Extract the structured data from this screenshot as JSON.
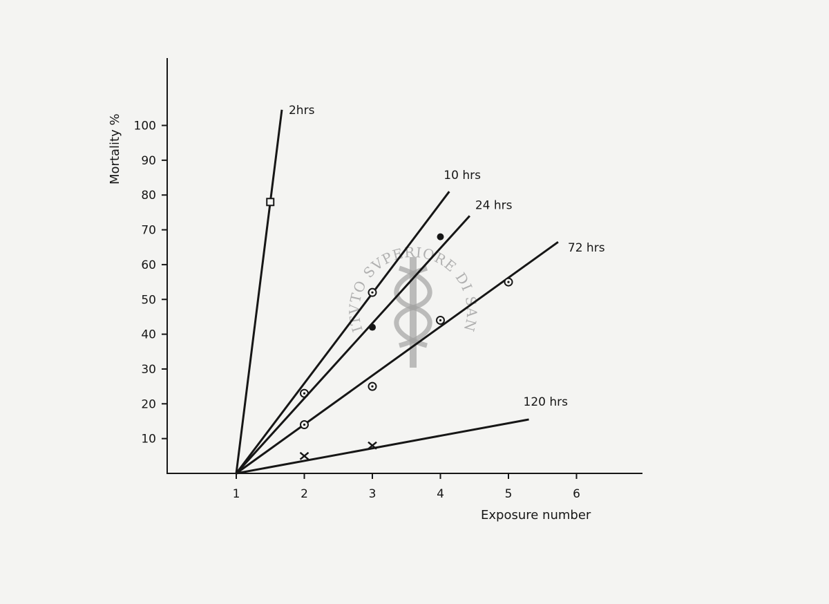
{
  "chart_data": {
    "type": "line",
    "xlabel": "Exposure number",
    "ylabel": "Mortality %",
    "xlim": [
      0,
      7
    ],
    "ylim": [
      0,
      110
    ],
    "x_ticks": [
      1,
      2,
      3,
      4,
      5,
      6
    ],
    "y_ticks": [
      10,
      20,
      30,
      40,
      50,
      60,
      70,
      80,
      90,
      100
    ],
    "grid": false,
    "series": [
      {
        "name": "2hrs",
        "line": [
          [
            1,
            0
          ],
          [
            1.67,
            104.5
          ]
        ],
        "points": [
          {
            "x": 1.5,
            "y": 78,
            "marker": "open-square"
          }
        ]
      },
      {
        "name": "10 hrs",
        "line": [
          [
            1,
            0
          ],
          [
            4.13,
            81
          ]
        ],
        "points": [
          {
            "x": 2,
            "y": 23,
            "marker": "ring-dot"
          },
          {
            "x": 3,
            "y": 52,
            "marker": "ring-dot"
          }
        ]
      },
      {
        "name": "24 hrs",
        "line": [
          [
            1,
            0
          ],
          [
            4.43,
            74
          ]
        ],
        "points": [
          {
            "x": 3,
            "y": 42,
            "marker": "filled-circle"
          },
          {
            "x": 4,
            "y": 68,
            "marker": "filled-circle"
          }
        ]
      },
      {
        "name": "72 hrs",
        "line": [
          [
            1,
            0
          ],
          [
            5.73,
            66.5
          ]
        ],
        "points": [
          {
            "x": 2,
            "y": 14,
            "marker": "ring-dot"
          },
          {
            "x": 3,
            "y": 25,
            "marker": "ring-dot"
          },
          {
            "x": 4,
            "y": 44,
            "marker": "ring-dot"
          },
          {
            "x": 5,
            "y": 55,
            "marker": "ring-dot"
          }
        ]
      },
      {
        "name": "120 hrs",
        "line": [
          [
            1,
            0
          ],
          [
            5.3,
            15.5
          ]
        ],
        "points": [
          {
            "x": 2,
            "y": 5,
            "marker": "cross"
          },
          {
            "x": 3,
            "y": 8,
            "marker": "cross"
          }
        ]
      }
    ]
  },
  "stamp": {
    "text": "ISTITVTO SVPERIORE DI SANITA"
  }
}
